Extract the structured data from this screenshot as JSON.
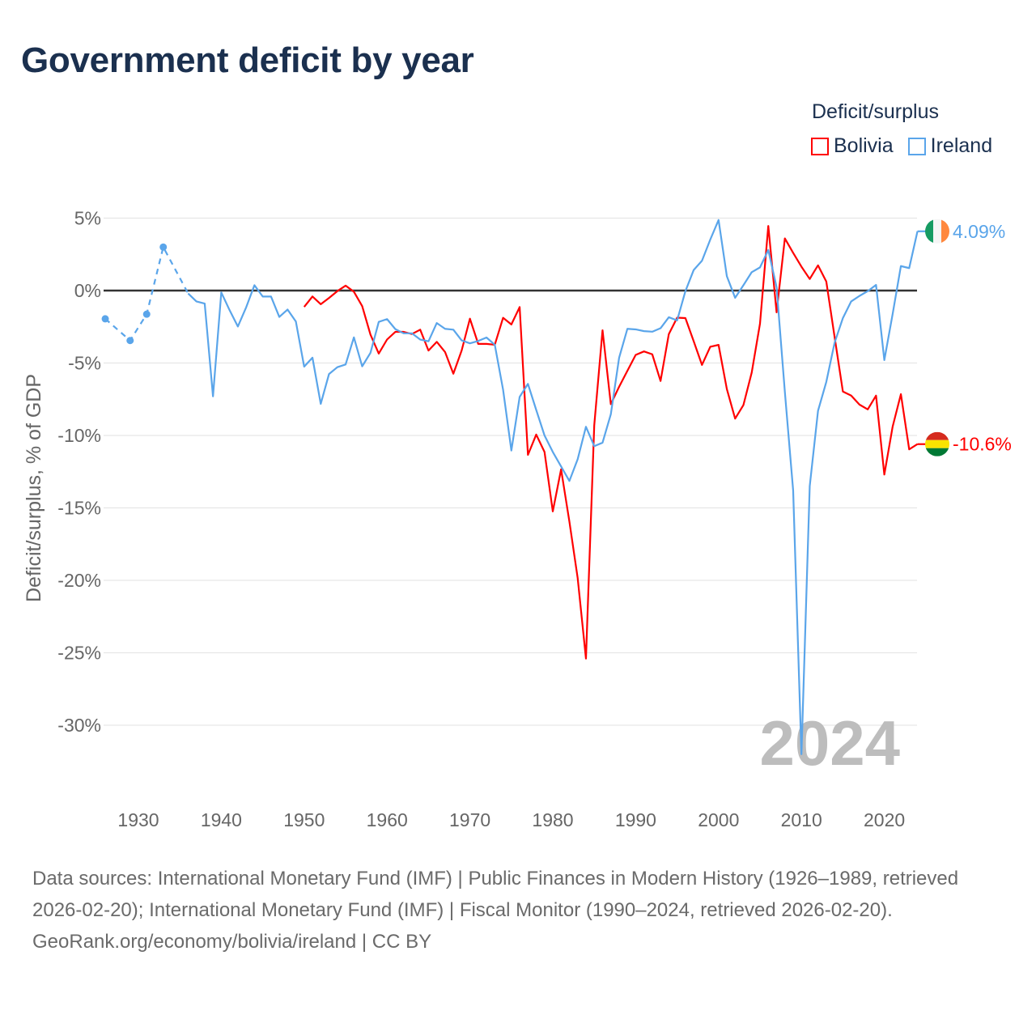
{
  "title": "Government deficit by year",
  "legend": {
    "title": "Deficit/surplus",
    "items": [
      {
        "label": "Bolivia",
        "color": "#ff0000"
      },
      {
        "label": "Ireland",
        "color": "#5aa5ea"
      }
    ]
  },
  "footer": {
    "sources": "Data sources: International Monetary Fund (IMF) | Public Finances in Modern History (1926–1989, retrieved 2026-02-20); International Monetary Fund (IMF) | Fiscal Monitor (1990–2024, retrieved 2026-02-20).",
    "credit": "GeoRank.org/economy/bolivia/ireland | CC BY"
  },
  "chart_data": {
    "type": "line",
    "title": "Government deficit by year",
    "xlabel": "",
    "ylabel": "Deficit/surplus, % of GDP",
    "xlim": [
      1926,
      2024
    ],
    "ylim": [
      -32,
      5
    ],
    "x_ticks": [
      1930,
      1940,
      1950,
      1960,
      1970,
      1980,
      1990,
      2000,
      2010,
      2020
    ],
    "x_tick_labels": [
      "1930",
      "1940",
      "1950",
      "1960",
      "1970",
      "1980",
      "1990",
      "2000",
      "2010",
      "2020"
    ],
    "y_ticks": [
      5,
      0,
      -5,
      -10,
      -15,
      -20,
      -25,
      -30
    ],
    "y_tick_labels": [
      "5%",
      "0%",
      "-5%",
      "-10%",
      "-15%",
      "-20%",
      "-25%",
      "-30%"
    ],
    "grid": true,
    "legend_position": "top-right",
    "current_year_label": "2024",
    "series": [
      {
        "name": "Bolivia",
        "color": "#ff0000",
        "end_label": "-10.6%",
        "flag": "bolivia-flag",
        "years": [
          1950,
          1951,
          1952,
          1953,
          1954,
          1955,
          1956,
          1957,
          1958,
          1959,
          1960,
          1961,
          1962,
          1963,
          1964,
          1965,
          1966,
          1967,
          1968,
          1969,
          1970,
          1971,
          1972,
          1973,
          1974,
          1975,
          1976,
          1977,
          1978,
          1979,
          1980,
          1981,
          1982,
          1983,
          1984,
          1985,
          1986,
          1987,
          1988,
          1989,
          1990,
          1991,
          1992,
          1993,
          1994,
          1995,
          1996,
          1997,
          1998,
          1999,
          2000,
          2001,
          2002,
          2003,
          2004,
          2005,
          2006,
          2007,
          2008,
          2009,
          2010,
          2011,
          2012,
          2013,
          2014,
          2015,
          2016,
          2017,
          2018,
          2019,
          2020,
          2021,
          2022,
          2023,
          2024
        ],
        "values": [
          -1.13,
          -0.41,
          -0.94,
          -0.51,
          -0.04,
          0.34,
          -0.08,
          -1.07,
          -3.04,
          -4.35,
          -3.38,
          -2.85,
          -2.85,
          -3.0,
          -2.7,
          -4.14,
          -3.54,
          -4.24,
          -5.74,
          -4.14,
          -1.94,
          -3.68,
          -3.68,
          -3.74,
          -1.88,
          -2.34,
          -1.14,
          -11.34,
          -9.94,
          -11.14,
          -15.24,
          -12.34,
          -15.94,
          -19.84,
          -25.4,
          -9.3,
          -2.74,
          -7.84,
          -6.64,
          -5.54,
          -4.44,
          -4.2,
          -4.4,
          -6.24,
          -3.0,
          -1.87,
          -1.9,
          -3.5,
          -5.13,
          -3.88,
          -3.75,
          -6.8,
          -8.84,
          -7.9,
          -5.66,
          -2.28,
          4.46,
          -1.5,
          3.6,
          2.6,
          1.65,
          0.8,
          1.74,
          0.62,
          -3.2,
          -6.97,
          -7.25,
          -7.87,
          -8.2,
          -7.25,
          -12.7,
          -9.4,
          -7.15,
          -10.96,
          -10.6
        ]
      },
      {
        "name": "Ireland",
        "color": "#5aa5ea",
        "end_label": "4.09%",
        "flag": "ireland-flag",
        "dashed_years": [
          1926,
          1929,
          1931,
          1933,
          1936
        ],
        "dashed_values": [
          -1.95,
          -3.45,
          -1.63,
          3.0,
          -0.2
        ],
        "years": [
          1936,
          1937,
          1938,
          1939,
          1940,
          1941,
          1942,
          1943,
          1944,
          1945,
          1946,
          1947,
          1948,
          1949,
          1950,
          1951,
          1952,
          1953,
          1954,
          1955,
          1956,
          1957,
          1958,
          1959,
          1960,
          1961,
          1962,
          1963,
          1964,
          1965,
          1966,
          1967,
          1968,
          1969,
          1970,
          1971,
          1972,
          1973,
          1974,
          1975,
          1976,
          1977,
          1978,
          1979,
          1980,
          1981,
          1982,
          1983,
          1984,
          1985,
          1986,
          1987,
          1988,
          1989,
          1990,
          1991,
          1992,
          1993,
          1994,
          1995,
          1996,
          1997,
          1998,
          1999,
          2000,
          2001,
          2002,
          2003,
          2004,
          2005,
          2006,
          2007,
          2008,
          2009,
          2010,
          2011,
          2012,
          2013,
          2014,
          2015,
          2016,
          2017,
          2018,
          2019,
          2020,
          2021,
          2022,
          2023,
          2024
        ],
        "values": [
          -0.2,
          -0.75,
          -0.9,
          -7.3,
          -0.13,
          -1.35,
          -2.48,
          -1.16,
          0.37,
          -0.41,
          -0.41,
          -1.82,
          -1.31,
          -2.14,
          -5.25,
          -4.63,
          -7.82,
          -5.76,
          -5.29,
          -5.1,
          -3.23,
          -5.23,
          -4.3,
          -2.16,
          -1.97,
          -2.66,
          -2.95,
          -2.95,
          -3.38,
          -3.5,
          -2.24,
          -2.64,
          -2.7,
          -3.44,
          -3.64,
          -3.48,
          -3.24,
          -3.74,
          -6.84,
          -11.04,
          -7.34,
          -6.44,
          -8.24,
          -10.0,
          -11.14,
          -12.14,
          -13.14,
          -11.64,
          -9.4,
          -10.74,
          -10.5,
          -8.54,
          -4.64,
          -2.64,
          -2.68,
          -2.8,
          -2.84,
          -2.6,
          -1.84,
          -2.06,
          -0.04,
          1.42,
          2.06,
          3.52,
          4.87,
          0.99,
          -0.5,
          0.37,
          1.27,
          1.6,
          2.8,
          0.24,
          -7.0,
          -13.8,
          -32.0,
          -13.5,
          -8.3,
          -6.3,
          -3.6,
          -1.9,
          -0.75,
          -0.37,
          -0.04,
          0.39,
          -4.8,
          -1.63,
          1.69,
          1.55,
          4.09
        ]
      }
    ]
  }
}
